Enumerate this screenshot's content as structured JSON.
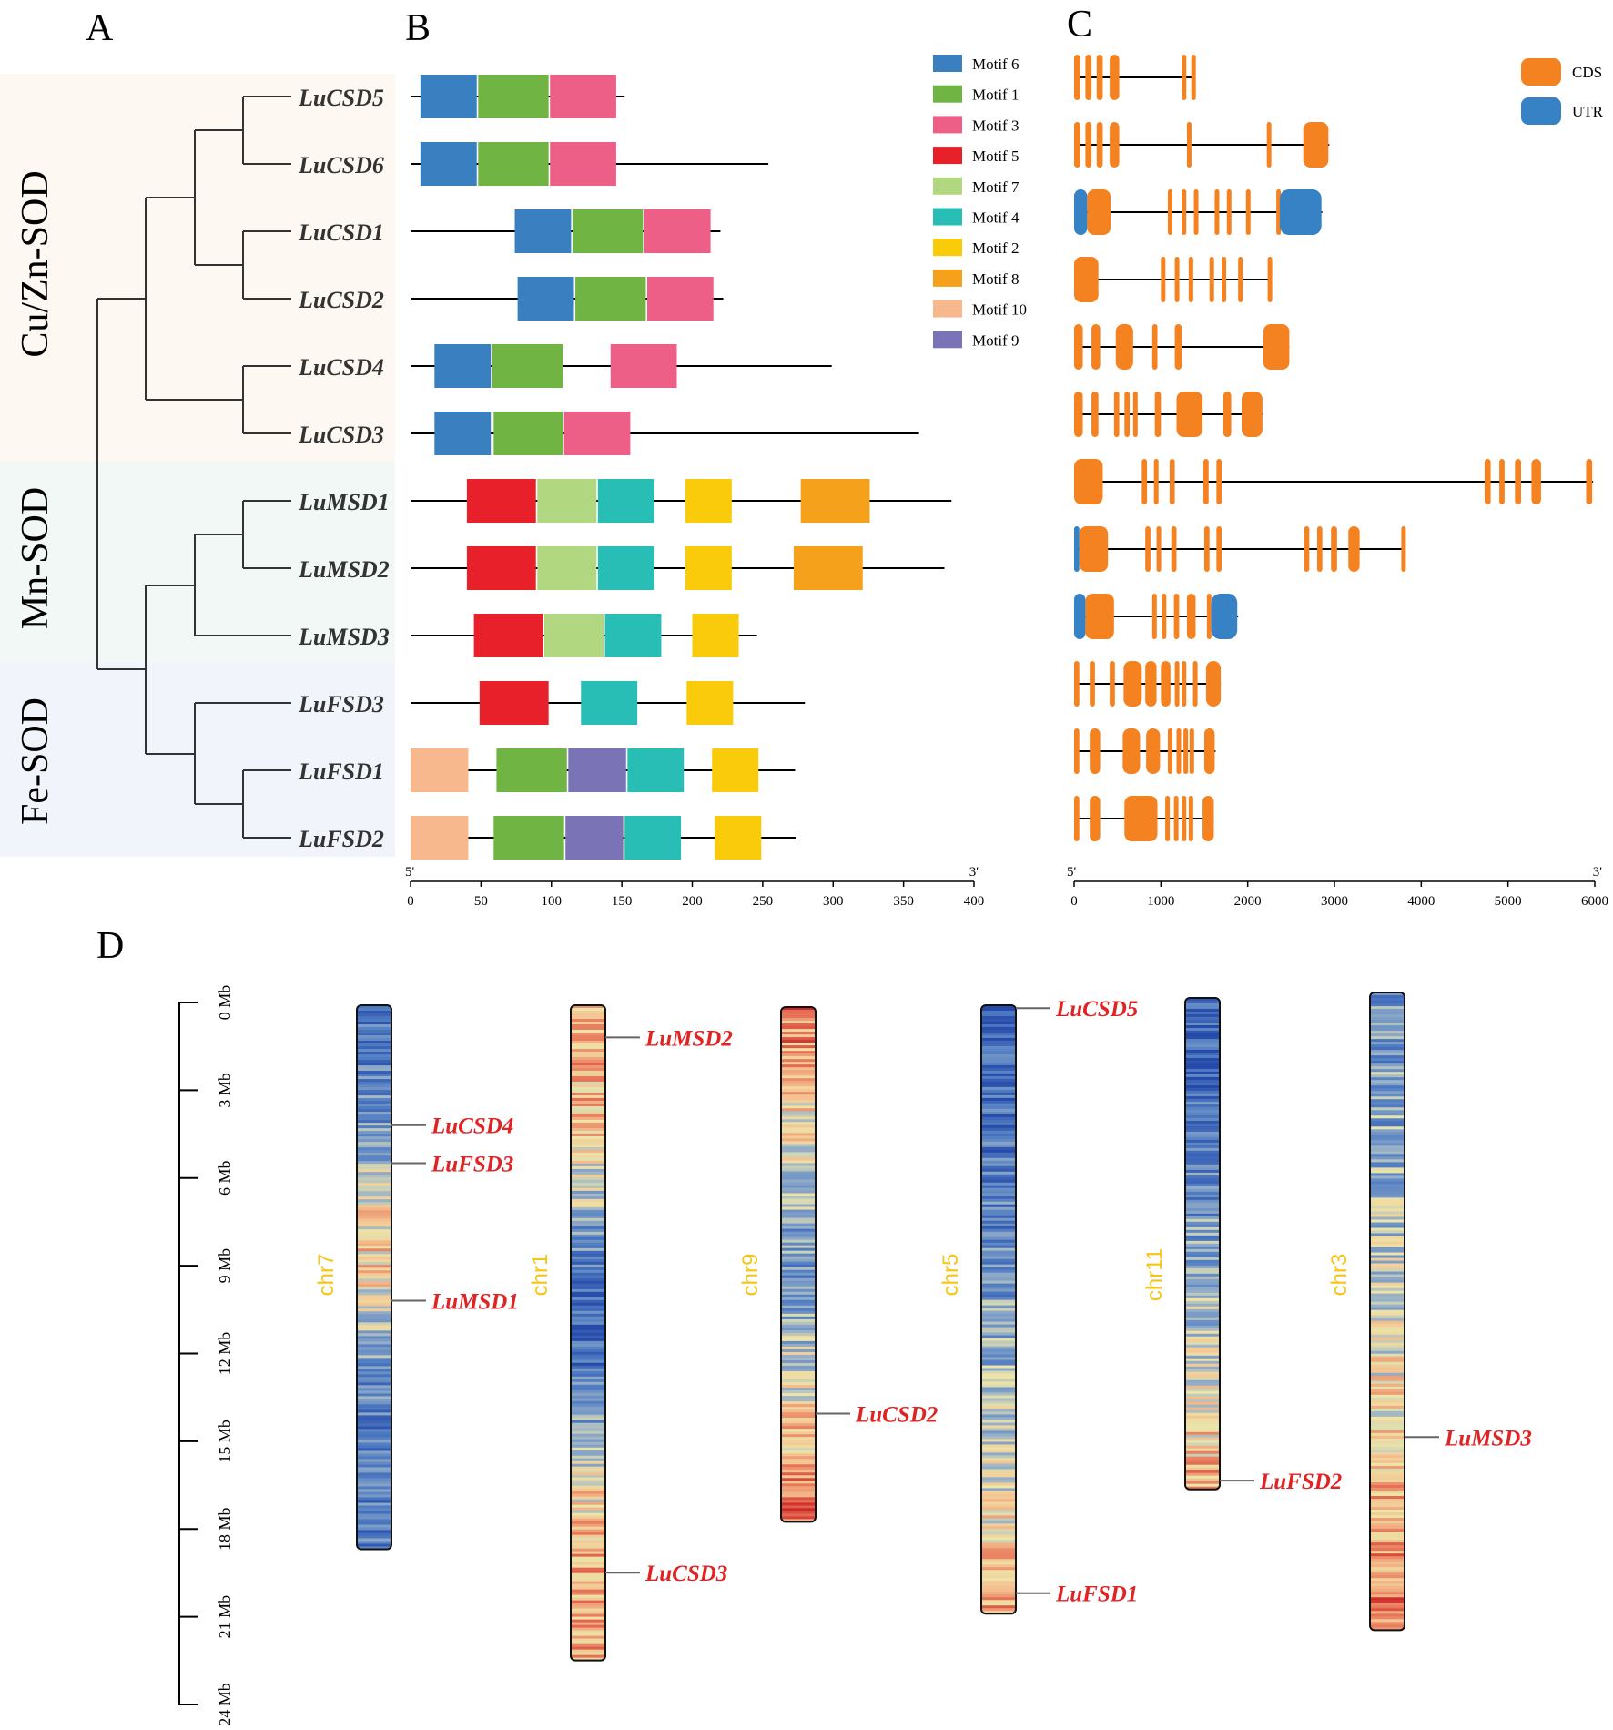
{
  "panels": {
    "A": "A",
    "B": "B",
    "C": "C",
    "D": "D"
  },
  "groups": [
    {
      "name": "Cu/Zn-SOD",
      "color": "#fdf8f1"
    },
    {
      "name": "Mn-SOD",
      "color": "#f1f8f5"
    },
    {
      "name": "Fe-SOD",
      "color": "#f1f5fb"
    }
  ],
  "genes": [
    "LuCSD5",
    "LuCSD6",
    "LuCSD1",
    "LuCSD2",
    "LuCSD4",
    "LuCSD3",
    "LuMSD1",
    "LuMSD2",
    "LuMSD3",
    "LuFSD3",
    "LuFSD1",
    "LuFSD2"
  ],
  "motif_legend": [
    {
      "name": "Motif 6",
      "color": "#3a7fc0"
    },
    {
      "name": "Motif 1",
      "color": "#70b544"
    },
    {
      "name": "Motif 3",
      "color": "#ee5f87"
    },
    {
      "name": "Motif 5",
      "color": "#e8202a"
    },
    {
      "name": "Motif 7",
      "color": "#b2d781"
    },
    {
      "name": "Motif 4",
      "color": "#28bdb5"
    },
    {
      "name": "Motif 2",
      "color": "#f9cb0a"
    },
    {
      "name": "Motif 8",
      "color": "#f6a11c"
    },
    {
      "name": "Motif 10",
      "color": "#f8b88e"
    },
    {
      "name": "Motif 9",
      "color": "#7a74b6"
    }
  ],
  "motifs": [
    {
      "gene": "LuCSD5",
      "length": 152,
      "motifs": [
        [
          "Motif 6",
          7,
          47
        ],
        [
          "Motif 1",
          48,
          98
        ],
        [
          "Motif 3",
          99,
          146
        ]
      ]
    },
    {
      "gene": "LuCSD6",
      "length": 254,
      "motifs": [
        [
          "Motif 6",
          7,
          47
        ],
        [
          "Motif 1",
          48,
          98
        ],
        [
          "Motif 3",
          99,
          146
        ]
      ]
    },
    {
      "gene": "LuCSD1",
      "length": 220,
      "motifs": [
        [
          "Motif 6",
          74,
          114
        ],
        [
          "Motif 1",
          115,
          165
        ],
        [
          "Motif 3",
          166,
          213
        ]
      ]
    },
    {
      "gene": "LuCSD2",
      "length": 222,
      "motifs": [
        [
          "Motif 6",
          76,
          116
        ],
        [
          "Motif 1",
          117,
          167
        ],
        [
          "Motif 3",
          168,
          215
        ]
      ]
    },
    {
      "gene": "LuCSD4",
      "length": 299,
      "motifs": [
        [
          "Motif 6",
          17,
          57
        ],
        [
          "Motif 1",
          58,
          108
        ],
        [
          "Motif 3",
          142,
          189
        ]
      ]
    },
    {
      "gene": "LuCSD3",
      "length": 361,
      "motifs": [
        [
          "Motif 6",
          17,
          57
        ],
        [
          "Motif 1",
          59,
          108
        ],
        [
          "Motif 3",
          109,
          156
        ]
      ]
    },
    {
      "gene": "LuMSD1",
      "length": 384,
      "motifs": [
        [
          "Motif 5",
          40,
          89
        ],
        [
          "Motif 7",
          90,
          132
        ],
        [
          "Motif 4",
          133,
          173
        ],
        [
          "Motif 2",
          195,
          228
        ],
        [
          "Motif 8",
          277,
          326
        ]
      ]
    },
    {
      "gene": "LuMSD2",
      "length": 379,
      "motifs": [
        [
          "Motif 5",
          40,
          89
        ],
        [
          "Motif 7",
          90,
          132
        ],
        [
          "Motif 4",
          133,
          173
        ],
        [
          "Motif 2",
          195,
          228
        ],
        [
          "Motif 8",
          272,
          321
        ]
      ]
    },
    {
      "gene": "LuMSD3",
      "length": 246,
      "motifs": [
        [
          "Motif 5",
          45,
          94
        ],
        [
          "Motif 7",
          95,
          137
        ],
        [
          "Motif 4",
          138,
          178
        ],
        [
          "Motif 2",
          200,
          233
        ]
      ]
    },
    {
      "gene": "LuFSD3",
      "length": 280,
      "motifs": [
        [
          "Motif 5",
          49,
          98
        ],
        [
          "Motif 4",
          121,
          161
        ],
        [
          "Motif 2",
          196,
          229
        ]
      ]
    },
    {
      "gene": "LuFSD1",
      "length": 273,
      "motifs": [
        [
          "Motif 10",
          0,
          41
        ],
        [
          "Motif 1",
          61,
          111
        ],
        [
          "Motif 9",
          112,
          153
        ],
        [
          "Motif 4",
          154,
          194
        ],
        [
          "Motif 2",
          214,
          247
        ]
      ]
    },
    {
      "gene": "LuFSD2",
      "length": 274,
      "motifs": [
        [
          "Motif 10",
          0,
          41
        ],
        [
          "Motif 1",
          59,
          109
        ],
        [
          "Motif 9",
          110,
          151
        ],
        [
          "Motif 4",
          152,
          192
        ],
        [
          "Motif 2",
          216,
          249
        ]
      ]
    }
  ],
  "motif_axis": {
    "start_label": "5'",
    "end_label": "3'",
    "min": 0,
    "max": 400,
    "ticks": [
      "0",
      "50",
      "100",
      "150",
      "200",
      "250",
      "300",
      "350",
      "400"
    ]
  },
  "gene_legend": [
    {
      "name": "CDS",
      "color": "#f58220"
    },
    {
      "name": "UTR",
      "color": "#3782c5"
    }
  ],
  "gene_structures": [
    {
      "gene": "LuCSD5",
      "length": 1400,
      "cds": [
        [
          0,
          70
        ],
        [
          130,
          200
        ],
        [
          260,
          330
        ],
        [
          410,
          520
        ],
        [
          1240,
          1290
        ],
        [
          1350,
          1390
        ]
      ],
      "utr": []
    },
    {
      "gene": "LuCSD6",
      "length": 2940,
      "cds": [
        [
          0,
          70
        ],
        [
          130,
          200
        ],
        [
          260,
          330
        ],
        [
          410,
          520
        ],
        [
          1300,
          1330
        ],
        [
          2220,
          2250
        ],
        [
          2640,
          2930
        ]
      ],
      "utr": []
    },
    {
      "gene": "LuCSD1",
      "length": 2860,
      "cds": [
        [
          150,
          420
        ],
        [
          1080,
          1130
        ],
        [
          1240,
          1290
        ],
        [
          1380,
          1430
        ],
        [
          1620,
          1670
        ],
        [
          1760,
          1810
        ],
        [
          1980,
          2030
        ],
        [
          2330,
          2370
        ]
      ],
      "utr": [
        [
          0,
          150
        ],
        [
          2370,
          2850
        ]
      ]
    },
    {
      "gene": "LuCSD2",
      "length": 2270,
      "cds": [
        [
          0,
          280
        ],
        [
          1000,
          1050
        ],
        [
          1160,
          1210
        ],
        [
          1320,
          1370
        ],
        [
          1560,
          1610
        ],
        [
          1700,
          1750
        ],
        [
          1890,
          1940
        ],
        [
          2230,
          2260
        ]
      ],
      "utr": []
    },
    {
      "gene": "LuCSD4",
      "length": 2480,
      "cds": [
        [
          0,
          100
        ],
        [
          200,
          300
        ],
        [
          480,
          680
        ],
        [
          900,
          960
        ],
        [
          1160,
          1240
        ],
        [
          2180,
          2480
        ]
      ],
      "utr": []
    },
    {
      "gene": "LuCSD3",
      "length": 2180,
      "cds": [
        [
          0,
          100
        ],
        [
          200,
          280
        ],
        [
          460,
          520
        ],
        [
          580,
          640
        ],
        [
          680,
          730
        ],
        [
          930,
          1000
        ],
        [
          1180,
          1480
        ],
        [
          1720,
          1810
        ],
        [
          1930,
          2170
        ]
      ],
      "utr": []
    },
    {
      "gene": "LuMSD1",
      "length": 5980,
      "cds": [
        [
          0,
          330
        ],
        [
          780,
          840
        ],
        [
          920,
          970
        ],
        [
          1100,
          1160
        ],
        [
          1490,
          1550
        ],
        [
          1640,
          1700
        ],
        [
          4730,
          4800
        ],
        [
          4900,
          4960
        ],
        [
          5080,
          5150
        ],
        [
          5270,
          5380
        ],
        [
          5900,
          5970
        ]
      ],
      "utr": []
    },
    {
      "gene": "LuMSD2",
      "length": 3820,
      "cds": [
        [
          60,
          390
        ],
        [
          820,
          880
        ],
        [
          950,
          1000
        ],
        [
          1120,
          1180
        ],
        [
          1500,
          1560
        ],
        [
          1640,
          1700
        ],
        [
          2650,
          2710
        ],
        [
          2800,
          2860
        ],
        [
          2960,
          3030
        ],
        [
          3160,
          3290
        ],
        [
          3770,
          3820
        ]
      ],
      "utr": [
        [
          0,
          60
        ]
      ]
    },
    {
      "gene": "LuMSD3",
      "length": 1890,
      "cds": [
        [
          130,
          460
        ],
        [
          900,
          950
        ],
        [
          1010,
          1060
        ],
        [
          1150,
          1210
        ],
        [
          1300,
          1400
        ],
        [
          1530,
          1580
        ]
      ],
      "utr": [
        [
          0,
          130
        ],
        [
          1580,
          1880
        ]
      ]
    },
    {
      "gene": "LuFSD3",
      "length": 1690,
      "cds": [
        [
          0,
          60
        ],
        [
          180,
          240
        ],
        [
          410,
          470
        ],
        [
          570,
          780
        ],
        [
          820,
          950
        ],
        [
          1000,
          1110
        ],
        [
          1160,
          1200
        ],
        [
          1240,
          1280
        ],
        [
          1370,
          1410
        ],
        [
          1520,
          1690
        ]
      ],
      "utr": []
    },
    {
      "gene": "LuFSD1",
      "length": 1630,
      "cds": [
        [
          0,
          60
        ],
        [
          180,
          300
        ],
        [
          560,
          760
        ],
        [
          830,
          990
        ],
        [
          1080,
          1120
        ],
        [
          1180,
          1210
        ],
        [
          1260,
          1300
        ],
        [
          1330,
          1370
        ],
        [
          1500,
          1620
        ]
      ],
      "utr": []
    },
    {
      "gene": "LuFSD2",
      "length": 1610,
      "cds": [
        [
          0,
          60
        ],
        [
          180,
          300
        ],
        [
          580,
          960
        ],
        [
          1050,
          1100
        ],
        [
          1150,
          1200
        ],
        [
          1240,
          1280
        ],
        [
          1320,
          1360
        ],
        [
          1480,
          1610
        ]
      ],
      "utr": []
    }
  ],
  "gene_axis": {
    "start_label": "5'",
    "end_label": "3'",
    "min": 0,
    "max": 6000,
    "ticks": [
      "0",
      "1000",
      "2000",
      "3000",
      "4000",
      "5000",
      "6000"
    ]
  },
  "scale": {
    "ticks": [
      "0 Mb",
      "3 Mb",
      "6 Mb",
      "9 Mb",
      "12 Mb",
      "15 Mb",
      "18 Mb",
      "21 Mb",
      "24 Mb"
    ],
    "max_mb": 24
  },
  "chromosomes": [
    {
      "name": "chr7",
      "length_mb": 18.6,
      "profile": "blue",
      "genes": [
        {
          "name": "LuCSD4",
          "pos_mb": 4.1
        },
        {
          "name": "LuFSD3",
          "pos_mb": 5.4
        },
        {
          "name": "LuMSD1",
          "pos_mb": 10.1
        }
      ]
    },
    {
      "name": "chr1",
      "length_mb": 22.4,
      "profile": "blue_mid",
      "genes": [
        {
          "name": "LuMSD2",
          "pos_mb": 1.1
        },
        {
          "name": "LuCSD3",
          "pos_mb": 19.4
        }
      ]
    },
    {
      "name": "chr9",
      "length_mb": 17.6,
      "profile": "red_ends",
      "genes": [
        {
          "name": "LuCSD2",
          "pos_mb": 13.9
        }
      ]
    },
    {
      "name": "chr5",
      "length_mb": 20.8,
      "profile": "blue_top",
      "genes": [
        {
          "name": "LuCSD5",
          "pos_mb": 0.1
        },
        {
          "name": "LuFSD1",
          "pos_mb": 20.1
        }
      ]
    },
    {
      "name": "chr11",
      "length_mb": 16.8,
      "profile": "blue_top",
      "genes": [
        {
          "name": "LuFSD2",
          "pos_mb": 16.5
        }
      ]
    },
    {
      "name": "chr3",
      "length_mb": 21.8,
      "profile": "red_bottom",
      "genes": [
        {
          "name": "LuMSD3",
          "pos_mb": 15.2
        }
      ]
    }
  ]
}
